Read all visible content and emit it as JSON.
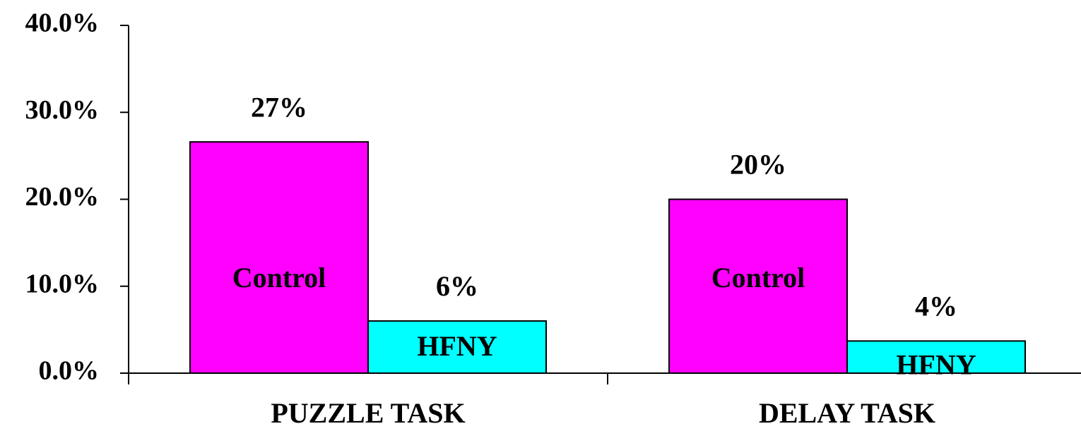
{
  "chart_data": {
    "type": "bar",
    "categories": [
      "PUZZLE TASK",
      "DELAY TASK"
    ],
    "series": [
      {
        "name": "Control",
        "color": "#ff00ff",
        "values": [
          26.6,
          20
        ],
        "value_labels": [
          "27%",
          "20%"
        ]
      },
      {
        "name": "HFNY",
        "color": "#00ffff",
        "values": [
          6,
          3.7
        ],
        "value_labels": [
          "6%",
          "4%"
        ]
      }
    ],
    "ylim": [
      0,
      40
    ],
    "yticks": [
      {
        "value": 0,
        "label": "0.0%"
      },
      {
        "value": 10,
        "label": "10.0%"
      },
      {
        "value": 20,
        "label": "20.0%"
      },
      {
        "value": 30,
        "label": "30.0%"
      },
      {
        "value": 40,
        "label": "40.0%"
      }
    ],
    "grid": false
  }
}
